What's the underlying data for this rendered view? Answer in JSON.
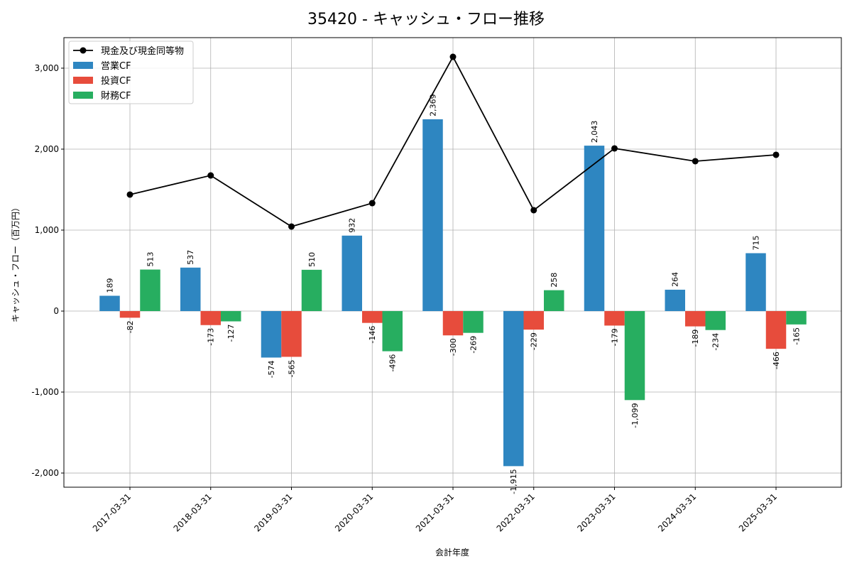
{
  "chart_data": {
    "type": "bar",
    "title": "35420 - キャッシュ・フロー推移",
    "xlabel": "会計年度",
    "ylabel": "キャッシュ・フロー（百万円）",
    "ylim": [
      -2175,
      3377
    ],
    "yticks": [
      -2000,
      -1000,
      0,
      1000,
      2000,
      3000
    ],
    "ytick_labels": [
      "-2,000",
      "-1,000",
      "0",
      "1,000",
      "2,000",
      "3,000"
    ],
    "grid": true,
    "legend_position": "top-left",
    "categories": [
      "2017-03-31",
      "2018-03-31",
      "2019-03-31",
      "2020-03-31",
      "2021-03-31",
      "2022-03-31",
      "2023-03-31",
      "2024-03-31",
      "2025-03-31"
    ],
    "series": [
      {
        "name": "営業CF",
        "type": "bar",
        "color": "#2e86c1",
        "values": [
          189,
          537,
          -574,
          932,
          2369,
          -1915,
          2043,
          264,
          715
        ],
        "labels": [
          "189",
          "537",
          "-574",
          "932",
          "2,369",
          "-1,915",
          "2,043",
          "264",
          "715"
        ]
      },
      {
        "name": "投資CF",
        "type": "bar",
        "color": "#e74c3c",
        "values": [
          -82,
          -173,
          -565,
          -146,
          -300,
          -229,
          -179,
          -189,
          -466
        ],
        "labels": [
          "-82",
          "-173",
          "-565",
          "-146",
          "-300",
          "-229",
          "-179",
          "-189",
          "-466"
        ]
      },
      {
        "name": "財務CF",
        "type": "bar",
        "color": "#27ae60",
        "values": [
          513,
          -127,
          510,
          -496,
          -269,
          258,
          -1099,
          -234,
          -165
        ],
        "labels": [
          "513",
          "-127",
          "510",
          "-496",
          "-269",
          "258",
          "-1,099",
          "-234",
          "-165"
        ]
      },
      {
        "name": "現金及び現金同等物",
        "type": "line",
        "color": "#000000",
        "values": [
          1439,
          1675,
          1044,
          1333,
          3140,
          1246,
          2009,
          1851,
          1930
        ]
      }
    ]
  }
}
